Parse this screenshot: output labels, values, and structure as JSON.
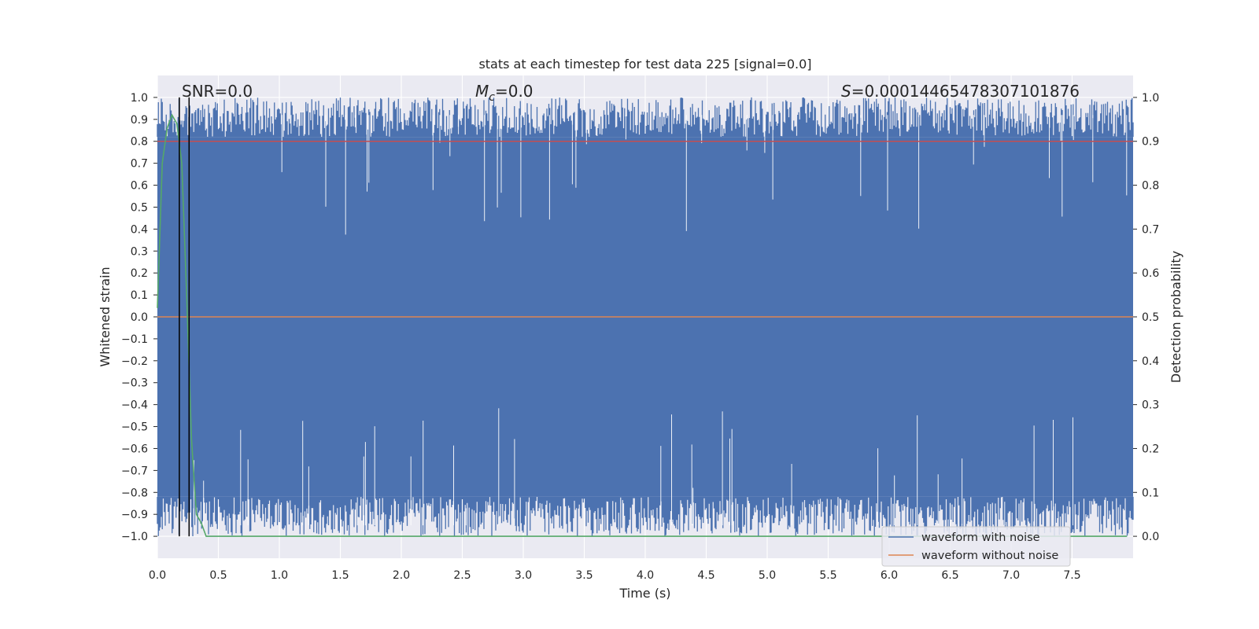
{
  "chart_data": {
    "type": "line",
    "title": "stats at each timestep for test data 225 [signal=0.0]",
    "xlabel": "Time (s)",
    "ylabel": "Whitened strain",
    "ylabel_right": "Detection probability",
    "xlim": [
      0.0,
      8.0
    ],
    "ylim": [
      -1.1,
      1.1
    ],
    "ylim_right": [
      -0.05,
      1.05
    ],
    "x_ticks": [
      "0.0",
      "0.5",
      "1.0",
      "1.5",
      "2.0",
      "2.5",
      "3.0",
      "3.5",
      "4.0",
      "4.5",
      "5.0",
      "5.5",
      "6.0",
      "6.5",
      "7.0",
      "7.5"
    ],
    "y_ticks": [
      "1.0",
      "0.9",
      "0.8",
      "0.7",
      "0.6",
      "0.5",
      "0.4",
      "0.3",
      "0.2",
      "0.1",
      "0.0",
      "−0.1",
      "−0.2",
      "−0.3",
      "−0.4",
      "−0.5",
      "−0.6",
      "−0.7",
      "−0.8",
      "−0.9",
      "−1.0"
    ],
    "y_ticks_right": [
      "1.0",
      "0.9",
      "0.8",
      "0.7",
      "0.6",
      "0.5",
      "0.4",
      "0.3",
      "0.2",
      "0.1",
      "0.0"
    ],
    "grid": true,
    "legend_position": "bottom-right",
    "annotations": {
      "snr_label": "SNR=0.0",
      "mc_symbol": "M",
      "mc_subscript": "c",
      "mc_value": "=0.0",
      "s_symbol": "S",
      "s_value": "=0.00014465478307101876"
    },
    "series": [
      {
        "name": "waveform with noise",
        "color": "#4c72b0",
        "description_range": [
          -1.0,
          1.0
        ]
      },
      {
        "name": "waveform without noise",
        "color": "#dd8452",
        "values_x": [
          0.0,
          8.0
        ],
        "values_y": [
          0.0,
          0.0
        ]
      },
      {
        "color": "#55a868",
        "axis": "right",
        "x": [
          0.0,
          0.04,
          0.08,
          0.12,
          0.16,
          0.2,
          0.24,
          0.28,
          0.32,
          0.36,
          0.4,
          1.0,
          2.0,
          3.0,
          4.0,
          5.0,
          6.0,
          7.0,
          7.95
        ],
        "y": [
          0.52,
          0.85,
          0.93,
          0.96,
          0.94,
          0.85,
          0.55,
          0.22,
          0.05,
          0.03,
          0.0,
          0.0,
          0.0,
          0.0,
          0.0,
          0.0,
          0.0,
          0.0,
          0.0
        ]
      },
      {
        "color": "#c44e52",
        "axis": "right",
        "x": [
          0.0,
          8.0
        ],
        "y": [
          0.9,
          0.9
        ]
      }
    ],
    "vertical_lines": [
      {
        "x": 0.18,
        "color": "#000000"
      },
      {
        "x": 0.26,
        "color": "#000000"
      }
    ]
  }
}
